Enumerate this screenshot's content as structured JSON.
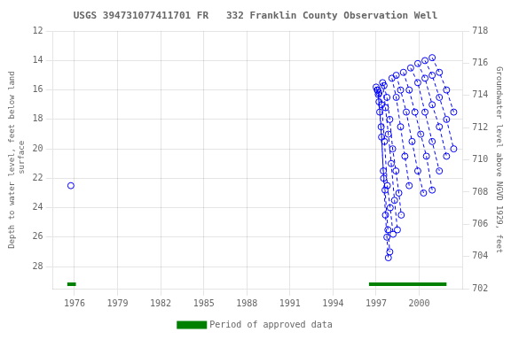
{
  "chart_data": {
    "type": "line",
    "title": "USGS 394731077411701 FR   332 Franklin County Observation Well",
    "ylabel": "Depth to water level, feet below land\n surface",
    "y2label": "Groundwater level above NGVD 1929, feet",
    "xlim": [
      1974.5,
      2003.0
    ],
    "xticks": [
      1976,
      1979,
      1982,
      1985,
      1988,
      1991,
      1994,
      1997,
      2000
    ],
    "ylim": [
      29.5,
      12
    ],
    "yticks": [
      12,
      14,
      16,
      18,
      20,
      22,
      24,
      26,
      28
    ],
    "y2lim": [
      702,
      718
    ],
    "y2ticks": [
      702,
      704,
      706,
      708,
      710,
      712,
      714,
      716,
      718
    ],
    "grid": true,
    "legend": "bottom",
    "series": [
      {
        "color": "#0000ff",
        "line_style": "dashed",
        "marker": "circle",
        "x": [
          1997.0,
          1997.08,
          1997.15,
          1997.25,
          1997.38,
          1997.52,
          1997.65,
          1997.75,
          1997.85
        ],
        "values": [
          15.8,
          16.0,
          16.3,
          17.5,
          19.2,
          22.0,
          24.5,
          26.0,
          27.4
        ]
      },
      {
        "color": "#0000ff",
        "line_style": "dashed",
        "marker": "circle",
        "x": [
          1997.1,
          1997.2,
          1997.35,
          1997.5,
          1997.62,
          1997.82,
          1997.95
        ],
        "values": [
          16.0,
          16.8,
          18.5,
          21.5,
          22.8,
          25.5,
          27.0
        ]
      },
      {
        "color": "#0000ff",
        "line_style": "dashed",
        "marker": "circle",
        "x": [
          1997.2,
          1997.38,
          1997.58,
          1997.78,
          1997.98,
          1998.18
        ],
        "values": [
          16.2,
          17.0,
          19.5,
          22.5,
          24.0,
          25.8
        ]
      },
      {
        "color": "#0000ff",
        "line_style": "dashed",
        "marker": "circle",
        "x": [
          1997.45,
          1997.65,
          1997.85,
          1998.05,
          1998.28,
          1998.48
        ],
        "values": [
          15.5,
          17.2,
          19.0,
          21.0,
          23.5,
          25.5
        ]
      },
      {
        "color": "#0000ff",
        "line_style": "dashed",
        "marker": "circle",
        "x": [
          1997.55,
          1997.75,
          1997.95,
          1998.15,
          1998.38,
          1998.58,
          1998.75
        ],
        "values": [
          15.7,
          16.5,
          18.0,
          20.0,
          21.5,
          23.0,
          24.5
        ]
      },
      {
        "color": "#0000ff",
        "line_style": "dashed",
        "marker": "circle",
        "x": [
          1998.1,
          1998.4,
          1998.7,
          1999.0,
          1999.3
        ],
        "values": [
          15.2,
          16.5,
          18.5,
          20.5,
          22.5
        ]
      },
      {
        "color": "#0000ff",
        "line_style": "dashed",
        "marker": "circle",
        "x": [
          1998.4,
          1998.7,
          1999.1,
          1999.5,
          1999.9,
          2000.3
        ],
        "values": [
          15.0,
          16.0,
          17.5,
          19.5,
          21.5,
          23.0
        ]
      },
      {
        "color": "#0000ff",
        "line_style": "dashed",
        "marker": "circle",
        "x": [
          1998.9,
          1999.3,
          1999.7,
          2000.1,
          2000.5,
          2000.9
        ],
        "values": [
          14.8,
          16.0,
          17.5,
          19.0,
          20.5,
          22.8
        ]
      },
      {
        "color": "#0000ff",
        "line_style": "dashed",
        "marker": "circle",
        "x": [
          1999.4,
          1999.9,
          2000.4,
          2000.9,
          2001.4
        ],
        "values": [
          14.5,
          15.5,
          17.5,
          19.5,
          21.5
        ]
      },
      {
        "color": "#0000ff",
        "line_style": "dashed",
        "marker": "circle",
        "x": [
          1999.9,
          2000.4,
          2000.9,
          2001.4,
          2001.9
        ],
        "values": [
          14.2,
          15.2,
          17.0,
          18.5,
          20.5
        ]
      },
      {
        "color": "#0000ff",
        "line_style": "dashed",
        "marker": "circle",
        "x": [
          2000.4,
          2000.9,
          2001.4,
          2001.9,
          2002.4
        ],
        "values": [
          14.0,
          15.0,
          16.5,
          18.0,
          20.0
        ]
      },
      {
        "color": "#0000ff",
        "line_style": "dashed",
        "marker": "circle",
        "x": [
          2000.9,
          2001.4,
          2001.9,
          2002.4
        ],
        "values": [
          13.8,
          14.8,
          16.0,
          17.5
        ]
      },
      {
        "color": "#0000ff",
        "line_style": "none",
        "marker": "circle",
        "x": [
          1975.75
        ],
        "values": [
          22.5
        ]
      },
      {
        "name": "Period of approved data",
        "color": "#008000",
        "line_style": "solid",
        "marker": "none",
        "x": [
          1975.5,
          1976.1
        ],
        "values": [
          29.2,
          29.2
        ]
      },
      {
        "color": "#008000",
        "line_style": "solid",
        "marker": "none",
        "x": [
          1996.5,
          2001.9
        ],
        "values": [
          29.2,
          29.2
        ]
      }
    ]
  }
}
